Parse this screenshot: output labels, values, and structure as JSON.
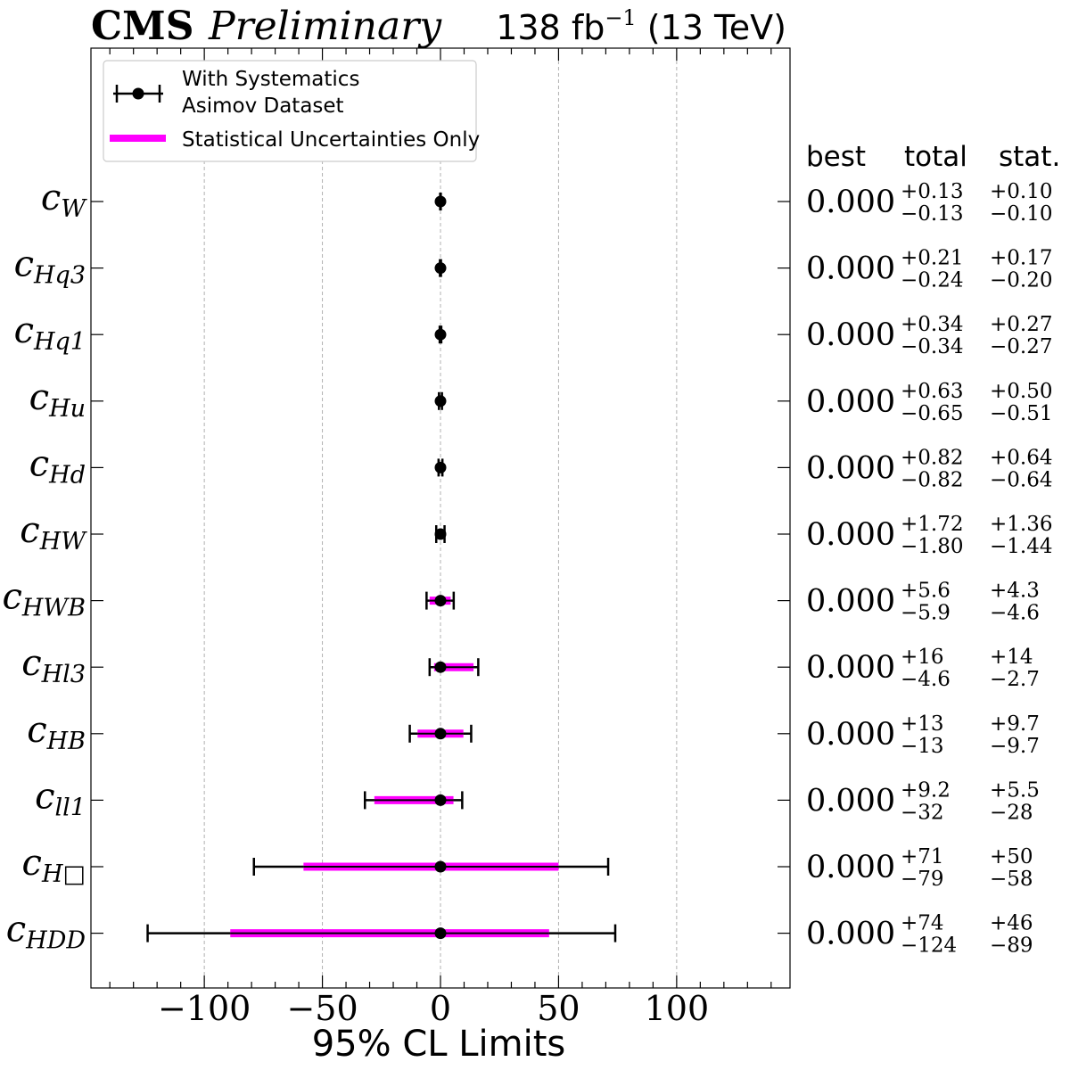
{
  "header": {
    "experiment": "CMS",
    "status": "Preliminary",
    "lumi_prefix": "138 fb",
    "lumi_exp": "−1",
    "lumi_suffix": " (13 TeV)"
  },
  "legend": {
    "systematics_line1": "With Systematics",
    "systematics_line2": "Asimov Dataset",
    "stat_only": "Statistical Uncertainties Only"
  },
  "columns": {
    "best": "best",
    "total": "total",
    "stat": "stat."
  },
  "colors": {
    "stat_band": "#ff00ff",
    "marker": "#000000",
    "grid": "#b0b0b0"
  },
  "chart_data": {
    "type": "scatter",
    "title": "",
    "xlabel": "95% CL Limits",
    "xlim": [
      -148,
      148
    ],
    "xticks": [
      "−100",
      "−50",
      "0",
      "50",
      "100"
    ],
    "grid": "vertical",
    "legend_position": "top-left",
    "params": [
      {
        "base": "c",
        "sub": "W",
        "best": "0.000",
        "tot_up": "+0.13",
        "tot_dn": "−0.13",
        "stat_up": "+0.10",
        "stat_dn": "−0.10",
        "tot": [
          -0.13,
          0.13
        ],
        "stat": [
          -0.1,
          0.1
        ]
      },
      {
        "base": "c",
        "sub": "Hq3",
        "best": "0.000",
        "tot_up": "+0.21",
        "tot_dn": "−0.24",
        "stat_up": "+0.17",
        "stat_dn": "−0.20",
        "tot": [
          -0.24,
          0.21
        ],
        "stat": [
          -0.2,
          0.17
        ]
      },
      {
        "base": "c",
        "sub": "Hq1",
        "best": "0.000",
        "tot_up": "+0.34",
        "tot_dn": "−0.34",
        "stat_up": "+0.27",
        "stat_dn": "−0.27",
        "tot": [
          -0.34,
          0.34
        ],
        "stat": [
          -0.27,
          0.27
        ]
      },
      {
        "base": "c",
        "sub": "Hu",
        "best": "0.000",
        "tot_up": "+0.63",
        "tot_dn": "−0.65",
        "stat_up": "+0.50",
        "stat_dn": "−0.51",
        "tot": [
          -0.65,
          0.63
        ],
        "stat": [
          -0.51,
          0.5
        ]
      },
      {
        "base": "c",
        "sub": "Hd",
        "best": "0.000",
        "tot_up": "+0.82",
        "tot_dn": "−0.82",
        "stat_up": "+0.64",
        "stat_dn": "−0.64",
        "tot": [
          -0.82,
          0.82
        ],
        "stat": [
          -0.64,
          0.64
        ]
      },
      {
        "base": "c",
        "sub": "HW",
        "best": "0.000",
        "tot_up": "+1.72",
        "tot_dn": "−1.80",
        "stat_up": "+1.36",
        "stat_dn": "−1.44",
        "tot": [
          -1.8,
          1.72
        ],
        "stat": [
          -1.44,
          1.36
        ]
      },
      {
        "base": "c",
        "sub": "HWB",
        "best": "0.000",
        "tot_up": "+5.6",
        "tot_dn": "−5.9",
        "stat_up": "+4.3",
        "stat_dn": "−4.6",
        "tot": [
          -5.9,
          5.6
        ],
        "stat": [
          -4.6,
          4.3
        ]
      },
      {
        "base": "c",
        "sub": "Hl3",
        "best": "0.000",
        "tot_up": "+16",
        "tot_dn": "−4.6",
        "stat_up": "+14",
        "stat_dn": "−2.7",
        "tot": [
          -4.6,
          16
        ],
        "stat": [
          -2.7,
          14
        ]
      },
      {
        "base": "c",
        "sub": "HB",
        "best": "0.000",
        "tot_up": "+13",
        "tot_dn": "−13",
        "stat_up": "+9.7",
        "stat_dn": "−9.7",
        "tot": [
          -13,
          13
        ],
        "stat": [
          -9.7,
          9.7
        ]
      },
      {
        "base": "c",
        "sub": "ll1",
        "best": "0.000",
        "tot_up": "+9.2",
        "tot_dn": "−32",
        "stat_up": "+5.5",
        "stat_dn": "−28",
        "tot": [
          -32,
          9.2
        ],
        "stat": [
          -28,
          5.5
        ]
      },
      {
        "base": "c",
        "sub": "H□",
        "best": "0.000",
        "tot_up": "+71",
        "tot_dn": "−79",
        "stat_up": "+50",
        "stat_dn": "−58",
        "tot": [
          -79,
          71
        ],
        "stat": [
          -58,
          50
        ]
      },
      {
        "base": "c",
        "sub": "HDD",
        "best": "0.000",
        "tot_up": "+74",
        "tot_dn": "−124",
        "stat_up": "+46",
        "stat_dn": "−89",
        "tot": [
          -124,
          74
        ],
        "stat": [
          -89,
          46
        ]
      }
    ]
  }
}
